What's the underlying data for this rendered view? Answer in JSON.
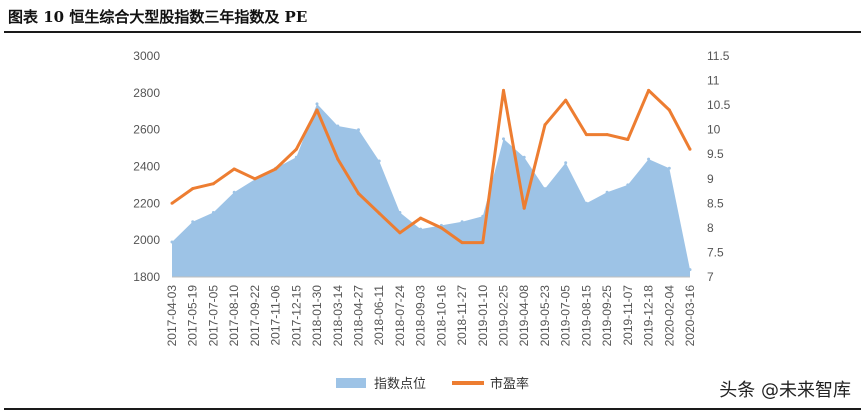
{
  "figure_title": "图表 10 恒生综合大型股指数三年指数及 PE",
  "watermark": "头条 @未来智库",
  "chart_data": {
    "type": "area+line",
    "title": "",
    "x": [
      "2017-04-03",
      "2017-05-19",
      "2017-07-05",
      "2017-08-10",
      "2017-09-22",
      "2017-11-06",
      "2017-12-15",
      "2018-01-30",
      "2018-03-14",
      "2018-04-27",
      "2018-06-11",
      "2018-07-24",
      "2018-09-03",
      "2018-10-16",
      "2018-11-27",
      "2019-01-10",
      "2019-02-25",
      "2019-04-08",
      "2019-05-23",
      "2019-07-05",
      "2019-08-15",
      "2019-09-25",
      "2019-11-07",
      "2019-12-18",
      "2020-02-04",
      "2020-03-16"
    ],
    "x_tick_labels": [
      "2017-04-03",
      "2017-05-19",
      "2017-07-05",
      "2017-08-10",
      "2017-09-22",
      "2017-11-06",
      "2017-12-15",
      "2018-01-30",
      "2018-03-14",
      "2018-04-27",
      "2018-06-11",
      "2018-07-24",
      "2018-09-03",
      "2018-10-16",
      "2018-11-27",
      "2019-01-10",
      "2019-02-25",
      "2019-04-08",
      "2019-05-23",
      "2019-07-05",
      "2019-08-15",
      "2019-09-25",
      "2019-11-07",
      "2019-12-18",
      "2020-02-04",
      "2020-03-16"
    ],
    "series": [
      {
        "name": "指数点位",
        "kind": "area",
        "axis": "left",
        "color": "#9dc3e6",
        "values": [
          1990,
          2100,
          2150,
          2260,
          2330,
          2390,
          2450,
          2740,
          2620,
          2600,
          2430,
          2150,
          2060,
          2080,
          2100,
          2130,
          2550,
          2450,
          2280,
          2420,
          2200,
          2260,
          2300,
          2440,
          2390,
          1840
        ]
      },
      {
        "name": "市盈率",
        "kind": "line",
        "axis": "right",
        "color": "#ed7d31",
        "values": [
          8.5,
          8.8,
          8.9,
          9.2,
          9.0,
          9.2,
          9.6,
          10.4,
          9.4,
          8.7,
          8.3,
          7.9,
          8.2,
          8.0,
          7.7,
          7.7,
          10.8,
          8.4,
          10.1,
          10.6,
          9.9,
          9.9,
          9.8,
          10.8,
          10.4,
          9.6
        ]
      }
    ],
    "ylim_left": [
      1800,
      3000
    ],
    "yticks_left": [
      1800,
      2000,
      2200,
      2400,
      2600,
      2800,
      3000
    ],
    "ylim_right": [
      7,
      11.5
    ],
    "yticks_right": [
      "7",
      "7.5",
      "8",
      "8.5",
      "9",
      "9.5",
      "10",
      "10.5",
      "11",
      "11.5"
    ],
    "xlabel": "",
    "ylabel": "",
    "grid": false,
    "legend": "bottom-center"
  },
  "colors": {
    "area": "#9dc3e6",
    "line": "#ed7d31"
  }
}
